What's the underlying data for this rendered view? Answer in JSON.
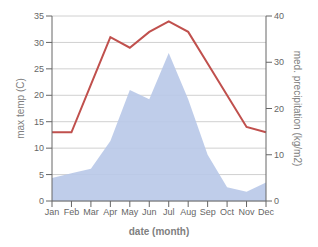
{
  "chart_data": {
    "type": "line",
    "xlabel": "date (month)",
    "ylabel": "max temp (C)",
    "y2label": "med. precipitation (kg/m2)",
    "categories": [
      "Jan",
      "Feb",
      "Mar",
      "Apr",
      "May",
      "Jun",
      "Jul",
      "Aug",
      "Sep",
      "Oct",
      "Nov",
      "Dec"
    ],
    "series": [
      {
        "type": "area",
        "color": "#b8c8e8",
        "axis": "y2",
        "values": [
          5,
          6,
          7,
          13,
          24,
          22,
          32,
          22,
          10,
          3,
          2,
          4
        ]
      },
      {
        "type": "line",
        "color": "#c0504d",
        "values": [
          13,
          13,
          22,
          31,
          29,
          32,
          34,
          32,
          26,
          20,
          14,
          13
        ]
      }
    ],
    "ylim": [
      0,
      35
    ],
    "yticks": [
      0,
      5,
      10,
      15,
      20,
      25,
      30,
      35
    ],
    "y2lim": [
      0,
      40
    ],
    "y2ticks": [
      0,
      10,
      20,
      30,
      40
    ],
    "grid": true
  }
}
